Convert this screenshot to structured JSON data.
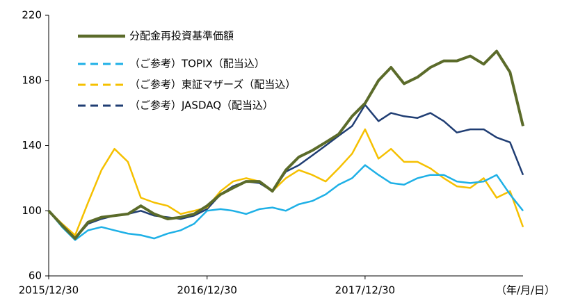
{
  "chart_data": {
    "type": "line",
    "x": [
      "2015/12/30",
      "2016/01/30",
      "2016/02/29",
      "2016/03/30",
      "2016/04/30",
      "2016/05/30",
      "2016/06/30",
      "2016/07/30",
      "2016/08/30",
      "2016/09/30",
      "2016/10/30",
      "2016/11/30",
      "2016/12/30",
      "2017/01/30",
      "2017/02/28",
      "2017/03/30",
      "2017/04/30",
      "2017/05/30",
      "2017/06/30",
      "2017/07/30",
      "2017/08/30",
      "2017/09/30",
      "2017/10/30",
      "2017/11/30",
      "2017/12/30",
      "2018/01/30",
      "2018/02/28",
      "2018/03/30",
      "2018/04/30",
      "2018/05/30",
      "2018/06/30",
      "2018/07/30",
      "2018/08/30",
      "2018/09/30",
      "2018/10/30",
      "2018/11/30",
      "2018/12/30"
    ],
    "series": [
      {
        "name": "分配金再投資基準価額",
        "color": "#5b6b2a",
        "values": [
          100,
          91,
          83,
          93,
          96,
          97,
          98,
          103,
          98,
          95,
          96,
          98,
          103,
          110,
          114,
          118,
          118,
          112,
          125,
          133,
          137,
          142,
          147,
          158,
          166,
          180,
          188,
          178,
          182,
          188,
          192,
          192,
          195,
          190,
          198,
          185,
          152
        ]
      },
      {
        "name": "（ご参考）TOPIX（配当込）",
        "color": "#1eb0e6",
        "values": [
          100,
          90,
          82,
          88,
          90,
          88,
          86,
          85,
          83,
          86,
          88,
          92,
          100,
          101,
          100,
          98,
          101,
          102,
          100,
          104,
          106,
          110,
          116,
          120,
          128,
          122,
          117,
          116,
          120,
          122,
          122,
          118,
          117,
          118,
          122,
          110,
          100
        ]
      },
      {
        "name": "（ご参考）東証マザーズ（配当込）",
        "color": "#f5c000",
        "values": [
          100,
          92,
          85,
          105,
          125,
          138,
          130,
          108,
          105,
          103,
          98,
          100,
          102,
          112,
          118,
          120,
          118,
          112,
          120,
          125,
          122,
          118,
          126,
          135,
          150,
          132,
          138,
          130,
          130,
          126,
          120,
          115,
          114,
          120,
          108,
          112,
          90
        ]
      },
      {
        "name": "（ご参考）JASDAQ（配当込）",
        "color": "#1f3d73",
        "values": [
          100,
          91,
          83,
          92,
          95,
          97,
          98,
          100,
          97,
          96,
          95,
          97,
          101,
          110,
          115,
          118,
          117,
          112,
          124,
          128,
          134,
          140,
          146,
          152,
          165,
          155,
          160,
          158,
          157,
          160,
          155,
          148,
          150,
          150,
          145,
          142,
          122
        ]
      }
    ],
    "xlim": [
      "2015/12/30",
      "2018/12/30"
    ],
    "xticks": [
      "2015/12/30",
      "2016/12/30",
      "2017/12/30"
    ],
    "x_label": "（年/月/日）",
    "ylim": [
      60,
      220
    ],
    "yticks": [
      60,
      100,
      140,
      180,
      220
    ],
    "grid": false,
    "legend": "upper-left"
  }
}
